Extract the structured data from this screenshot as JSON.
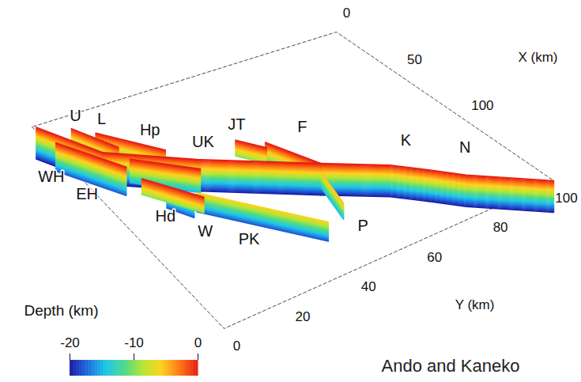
{
  "chart_data": {
    "type": "fault_3d",
    "x_label": "X (km)",
    "y_label": "Y (km)",
    "xlim": [
      0,
      160
    ],
    "xticks": [
      0,
      50,
      100
    ],
    "ylim": [
      0,
      100
    ],
    "yticks": [
      0,
      20,
      40,
      60,
      80,
      100
    ],
    "colorbar": {
      "label": "Depth (km)",
      "lim": [
        -20,
        0
      ],
      "ticks": [
        -20,
        -10,
        0
      ]
    },
    "source": "Ando and Kaneko",
    "faults": [
      {
        "name": "U",
        "trace": [
          [
            8.7,
            9.5
          ],
          [
            29.8,
            16.4
          ]
        ],
        "top": 0,
        "bottom": -12,
        "label_at": [
          1.4,
          13.7
        ]
      },
      {
        "name": "L",
        "trace": [
          [
            16.3,
            14.4
          ],
          [
            41.5,
            26.9
          ]
        ],
        "top": 0,
        "bottom": -12,
        "label_at": [
          8.9,
          19.3
        ]
      },
      {
        "name": "Hp",
        "trace": [
          [
            39.5,
            16.3
          ],
          [
            61,
            30.3
          ]
        ],
        "top": 0,
        "bottom": -15,
        "label_at": [
          25.8,
          28.2
        ]
      },
      {
        "name": "UK",
        "trace": [
          [
            29.8,
            11.4
          ],
          [
            54.3,
            31.8
          ],
          [
            86,
            58.3
          ]
        ],
        "top": 0,
        "bottom": -20,
        "label_at": [
          45,
          37.6
        ]
      },
      {
        "name": "JT",
        "trace": [
          [
            50.9,
            45.6
          ],
          [
            63,
            50.6
          ]
        ],
        "top": 0,
        "bottom": -10,
        "label_at": [
          41,
          50
        ]
      },
      {
        "name": "F",
        "trace": [
          [
            59.2,
            51.7
          ],
          [
            86,
            58.3
          ]
        ],
        "top": 0,
        "bottom": -15,
        "label_at": [
          57.8,
          64.1
        ]
      },
      {
        "name": "K",
        "trace": [
          [
            86,
            58.3
          ],
          [
            104.7,
            72.4
          ],
          [
            118,
            79
          ]
        ],
        "top": 0,
        "bottom": -20,
        "label_at": [
          92.5,
          82.4
        ]
      },
      {
        "name": "N",
        "trace": [
          [
            118,
            79
          ],
          [
            131.5,
            85
          ],
          [
            160,
            100
          ]
        ],
        "top": 0,
        "bottom": -20,
        "label_at": [
          113,
          92.3
        ]
      },
      {
        "name": "WH",
        "trace": [
          [
            1,
            1
          ],
          [
            29.8,
            11.4
          ]
        ],
        "top": 0,
        "bottom": -20,
        "label_at": [
          33.6,
          -6.8
        ]
      },
      {
        "name": "EH",
        "trace": [
          [
            14.3,
            2.2
          ],
          [
            43.5,
            13.5
          ]
        ],
        "top": 0,
        "bottom": -18,
        "label_at": [
          51.6,
          -2.2
        ]
      },
      {
        "name": "Hd",
        "trace": [
          [
            54,
            14.4
          ],
          [
            79,
            24.3
          ]
        ],
        "top": 0,
        "bottom": -10,
        "label_at": [
          81.6,
          11.2
        ]
      },
      {
        "name": "W",
        "trace": [
          [
            60,
            20
          ],
          [
            72,
            24
          ]
        ],
        "top": -5,
        "bottom": -18,
        "label_at": [
          100,
          16.6
        ]
      },
      {
        "name": "PK",
        "trace": [
          [
            69,
            26
          ],
          [
            118.7,
            47.6
          ]
        ],
        "top": -6,
        "bottom": -18,
        "label_at": [
          115,
          24.5
        ]
      },
      {
        "name": "P",
        "trace": [
          [
            86,
            58.3
          ],
          [
            112,
            55
          ]
        ],
        "top": -5,
        "bottom": -15,
        "label_at": [
          135.7,
          51.6
        ]
      }
    ]
  }
}
